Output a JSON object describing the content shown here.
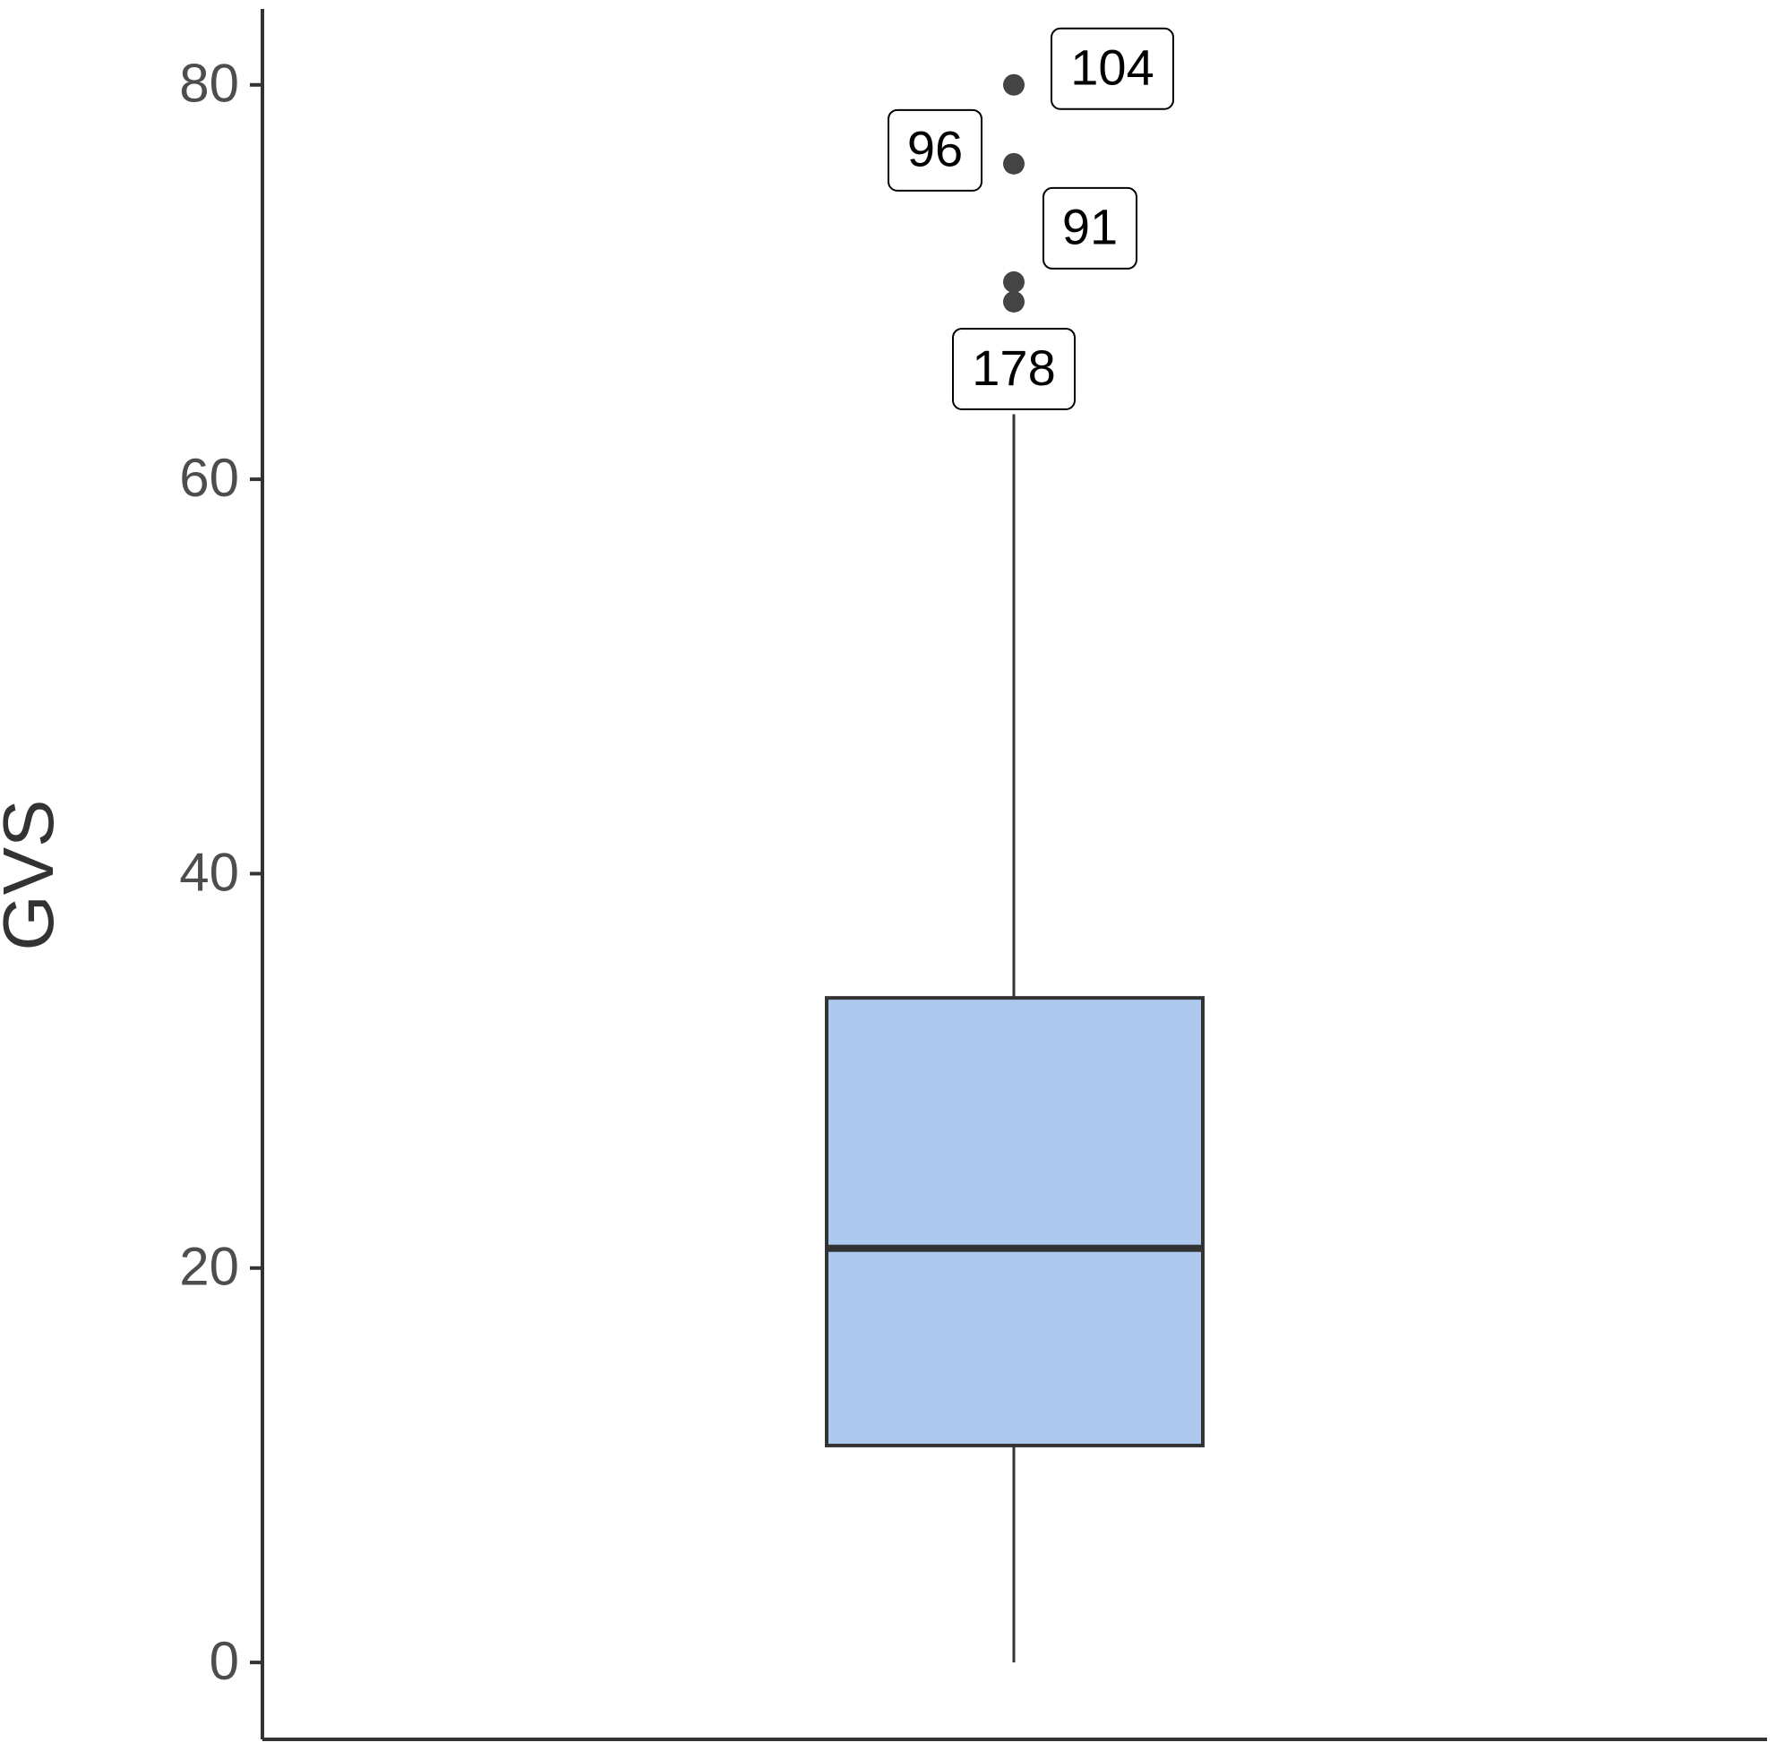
{
  "chart_data": {
    "type": "box",
    "y_label": "GVS",
    "ylim": [
      -3.9,
      83.85
    ],
    "yticks": [
      0,
      20,
      40,
      60,
      80
    ],
    "color": "#adc9ef",
    "box": {
      "min": 0,
      "q1": 11.0,
      "median": 21.0,
      "q3": 33.7,
      "max": 63.3
    },
    "outliers": [
      {
        "value": 80,
        "label": "104"
      },
      {
        "value": 76,
        "label": "96"
      },
      {
        "value": 70,
        "label": "91"
      },
      {
        "value": 69,
        "label": "178"
      }
    ]
  }
}
